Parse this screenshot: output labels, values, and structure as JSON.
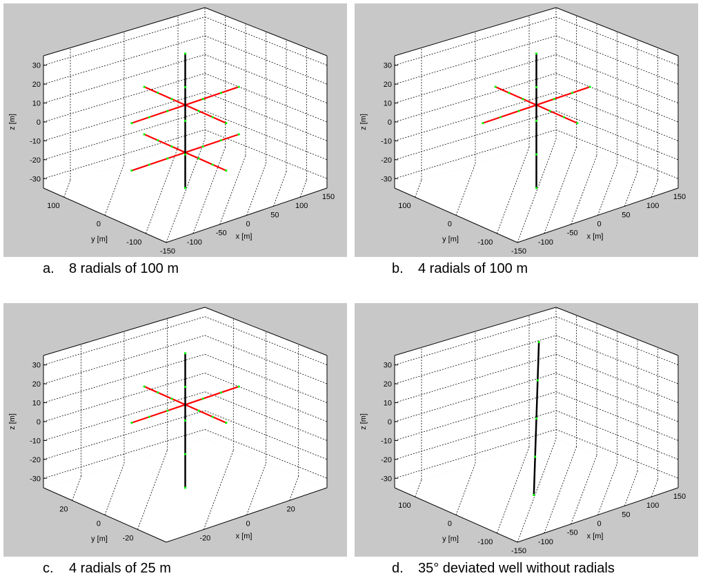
{
  "chart_data": [
    {
      "type": "line3d",
      "caption_letter": "a.",
      "caption_text": "8 radials of 100 m",
      "xlabel": "x [m]",
      "ylabel": "y [m]",
      "zlabel": "z [m]",
      "xlim": [
        -150,
        150
      ],
      "ylim": [
        -150,
        150
      ],
      "zlim": [
        -35,
        35
      ],
      "xticks": [
        -150,
        -100,
        -50,
        0,
        50,
        100,
        150
      ],
      "yticks": [
        -100,
        0,
        100
      ],
      "zticks": [
        -30,
        -20,
        -10,
        0,
        10,
        20,
        30
      ],
      "well": [
        [
          0,
          0,
          -35
        ],
        [
          0,
          0,
          33
        ]
      ],
      "radials": [
        [
          [
            0,
            0,
            7
          ],
          [
            100,
            0,
            7
          ]
        ],
        [
          [
            0,
            0,
            7
          ],
          [
            -100,
            0,
            7
          ]
        ],
        [
          [
            0,
            0,
            7
          ],
          [
            0,
            100,
            7
          ]
        ],
        [
          [
            0,
            0,
            7
          ],
          [
            0,
            -100,
            7
          ]
        ],
        [
          [
            0,
            0,
            -17
          ],
          [
            100,
            0,
            -17
          ]
        ],
        [
          [
            0,
            0,
            -17
          ],
          [
            -100,
            0,
            -17
          ]
        ],
        [
          [
            0,
            0,
            -17
          ],
          [
            0,
            100,
            -17
          ]
        ],
        [
          [
            0,
            0,
            -17
          ],
          [
            0,
            -100,
            -17
          ]
        ]
      ],
      "colors": {
        "well": "#000000",
        "radial": "#ff0000",
        "marker": "#00ff00"
      }
    },
    {
      "type": "line3d",
      "caption_letter": "b.",
      "caption_text": "4 radials of 100 m",
      "xlabel": "x [m]",
      "ylabel": "y [m]",
      "zlabel": "z [m]",
      "xlim": [
        -150,
        150
      ],
      "ylim": [
        -150,
        150
      ],
      "zlim": [
        -35,
        35
      ],
      "xticks": [
        -150,
        -100,
        -50,
        0,
        50,
        100,
        150
      ],
      "yticks": [
        -100,
        0,
        100
      ],
      "zticks": [
        -30,
        -20,
        -10,
        0,
        10,
        20,
        30
      ],
      "well": [
        [
          0,
          0,
          -35
        ],
        [
          0,
          0,
          33
        ]
      ],
      "radials": [
        [
          [
            0,
            0,
            7
          ],
          [
            100,
            0,
            7
          ]
        ],
        [
          [
            0,
            0,
            7
          ],
          [
            -100,
            0,
            7
          ]
        ],
        [
          [
            0,
            0,
            7
          ],
          [
            0,
            100,
            7
          ]
        ],
        [
          [
            0,
            0,
            7
          ],
          [
            0,
            -100,
            7
          ]
        ]
      ],
      "colors": {
        "well": "#000000",
        "radial": "#ff0000",
        "marker": "#00ff00"
      }
    },
    {
      "type": "line3d",
      "caption_letter": "c.",
      "caption_text": "4 radials of 25 m",
      "xlabel": "x [m]",
      "ylabel": "y [m]",
      "zlabel": "z [m]",
      "xlim": [
        -37.5,
        37.5
      ],
      "ylim": [
        -37.5,
        37.5
      ],
      "zlim": [
        -35,
        35
      ],
      "xticks": [
        -20,
        0,
        20
      ],
      "yticks": [
        -20,
        0,
        20
      ],
      "zticks": [
        -30,
        -20,
        -10,
        0,
        10,
        20,
        30
      ],
      "well": [
        [
          0,
          0,
          -35
        ],
        [
          0,
          0,
          33
        ]
      ],
      "radials": [
        [
          [
            0,
            0,
            7
          ],
          [
            25,
            0,
            7
          ]
        ],
        [
          [
            0,
            0,
            7
          ],
          [
            -25,
            0,
            7
          ]
        ],
        [
          [
            0,
            0,
            7
          ],
          [
            0,
            25,
            7
          ]
        ],
        [
          [
            0,
            0,
            7
          ],
          [
            0,
            -25,
            7
          ]
        ]
      ],
      "colors": {
        "well": "#000000",
        "radial": "#ff0000",
        "marker": "#00ff00"
      }
    },
    {
      "type": "line3d",
      "caption_letter": "d.",
      "caption_text": "35° deviated well without radials",
      "xlabel": "x [m]",
      "ylabel": "y [m]",
      "zlabel": "z [m]",
      "xlim": [
        -150,
        150
      ],
      "ylim": [
        -150,
        150
      ],
      "zlim": [
        -35,
        35
      ],
      "xticks": [
        -150,
        -100,
        -50,
        0,
        50,
        100,
        150
      ],
      "yticks": [
        -100,
        0,
        100
      ],
      "zticks": [
        -30,
        -20,
        -10,
        0,
        10,
        20,
        30
      ],
      "well": [
        [
          -20,
          -20,
          -35
        ],
        [
          20,
          20,
          35
        ]
      ],
      "radials": [],
      "colors": {
        "well": "#000000",
        "radial": "#ff0000",
        "marker": "#00ff00"
      }
    }
  ]
}
